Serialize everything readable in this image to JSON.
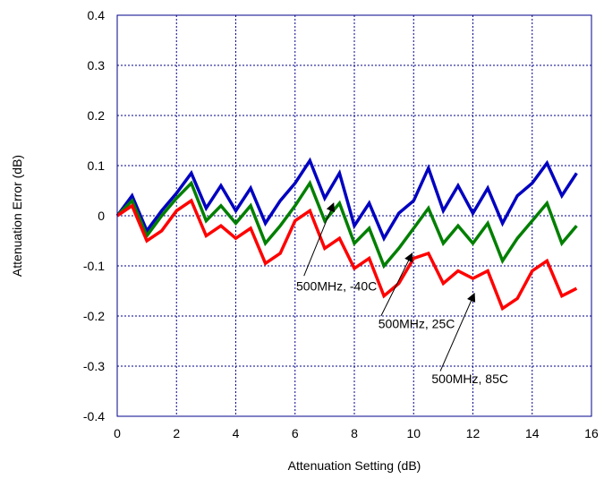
{
  "chart_data": {
    "type": "line",
    "title": "",
    "xlabel": "Attenuation Setting (dB)",
    "ylabel": "Attenuation Error (dB)",
    "xlim": [
      0,
      16
    ],
    "ylim": [
      -0.4,
      0.4
    ],
    "xticks": [
      0,
      2,
      4,
      6,
      8,
      10,
      12,
      14,
      16
    ],
    "yticks": [
      -0.4,
      -0.3,
      -0.2,
      -0.1,
      0,
      0.1,
      0.2,
      0.3,
      0.4
    ],
    "xtick_labels": [
      "0",
      "2",
      "4",
      "6",
      "8",
      "10",
      "12",
      "14",
      "16"
    ],
    "ytick_labels": [
      "-0.4",
      "-0.3",
      "-0.2",
      "-0.1",
      "0",
      "0.1",
      "0.2",
      "0.3",
      "0.4"
    ],
    "grid": true,
    "x": [
      0,
      0.5,
      1,
      1.5,
      2,
      2.5,
      3,
      3.5,
      4,
      4.5,
      5,
      5.5,
      6,
      6.5,
      7,
      7.5,
      8,
      8.5,
      9,
      9.5,
      10,
      10.5,
      11,
      11.5,
      12,
      12.5,
      13,
      13.5,
      14,
      14.5,
      15,
      15.5
    ],
    "series": [
      {
        "color": "#0000c0",
        "values": [
          0,
          0.04,
          -0.03,
          0.01,
          0.045,
          0.085,
          0.015,
          0.06,
          0.01,
          0.055,
          -0.015,
          0.03,
          0.065,
          0.11,
          0.035,
          0.085,
          -0.02,
          0.025,
          -0.045,
          0.005,
          0.03,
          0.095,
          0.01,
          0.06,
          0.005,
          0.055,
          -0.015,
          0.04,
          0.065,
          0.105,
          0.04,
          0.085
        ]
      },
      {
        "color": "#007f00",
        "values": [
          0,
          0.03,
          -0.04,
          0,
          0.035,
          0.065,
          -0.01,
          0.02,
          -0.015,
          0.02,
          -0.055,
          -0.02,
          0.02,
          0.065,
          -0.01,
          0.025,
          -0.055,
          -0.025,
          -0.1,
          -0.065,
          -0.025,
          0.015,
          -0.055,
          -0.02,
          -0.055,
          -0.015,
          -0.09,
          -0.045,
          -0.01,
          0.025,
          -0.055,
          -0.02
        ]
      },
      {
        "color": "#ff0000",
        "values": [
          0,
          0.02,
          -0.05,
          -0.03,
          0.01,
          0.03,
          -0.04,
          -0.02,
          -0.045,
          -0.025,
          -0.095,
          -0.075,
          -0.01,
          0.01,
          -0.065,
          -0.045,
          -0.105,
          -0.085,
          -0.16,
          -0.135,
          -0.085,
          -0.075,
          -0.135,
          -0.11,
          -0.125,
          -0.11,
          -0.185,
          -0.165,
          -0.11,
          -0.09,
          -0.16,
          -0.145
        ]
      }
    ],
    "annotations": [
      {
        "text": "500MHz, -40C",
        "label_x": 7.4,
        "label_y": -0.14,
        "arrow_from": [
          6.3,
          -0.12
        ],
        "arrow_to": [
          7.3,
          0.025
        ]
      },
      {
        "text": "500MHz, 25C",
        "label_x": 10.1,
        "label_y": -0.215,
        "arrow_from": [
          8.9,
          -0.2
        ],
        "arrow_to": [
          9.95,
          -0.075
        ]
      },
      {
        "text": "500MHz, 85C",
        "label_x": 11.9,
        "label_y": -0.325,
        "arrow_from": [
          10.9,
          -0.31
        ],
        "arrow_to": [
          12.05,
          -0.155
        ]
      }
    ]
  }
}
